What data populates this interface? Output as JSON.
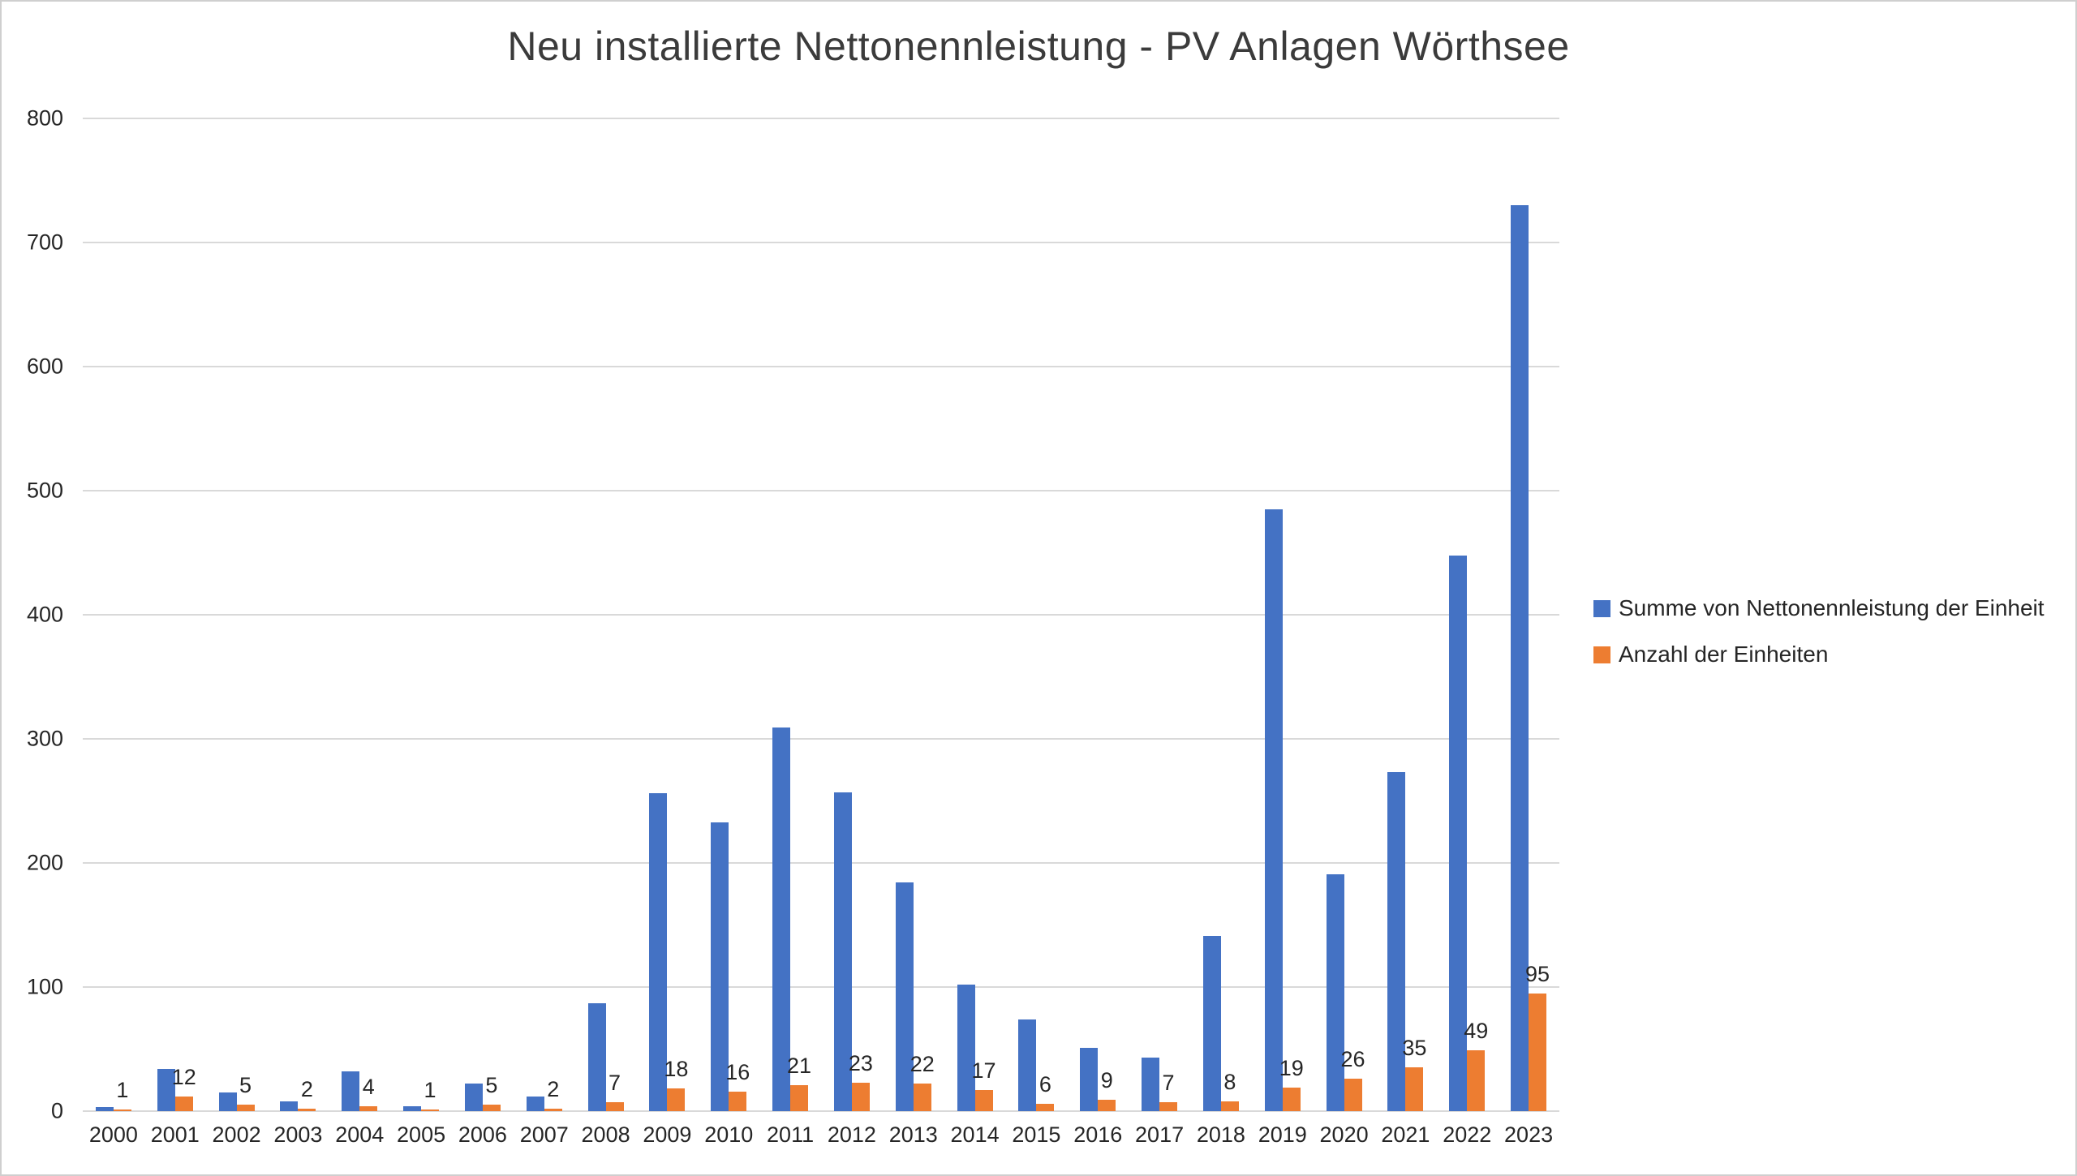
{
  "title": "Neu installierte Nettonennleistung - PV Anlagen Wörthsee",
  "chart_data": {
    "type": "bar",
    "title": "Neu installierte Nettonennleistung - PV Anlagen Wörthsee",
    "categories": [
      "2000",
      "2001",
      "2002",
      "2003",
      "2004",
      "2005",
      "2006",
      "2007",
      "2008",
      "2009",
      "2010",
      "2011",
      "2012",
      "2013",
      "2014",
      "2015",
      "2016",
      "2017",
      "2018",
      "2019",
      "2020",
      "2021",
      "2022",
      "2023"
    ],
    "series": [
      {
        "name": "Summe von Nettonennleistung der Einheit",
        "color": "#4472c4",
        "values": [
          3,
          34,
          15,
          8,
          32,
          4,
          22,
          12,
          87,
          256,
          233,
          309,
          257,
          184,
          102,
          74,
          51,
          43,
          141,
          485,
          191,
          273,
          448,
          730
        ],
        "data_labels": false
      },
      {
        "name": "Anzahl der Einheiten",
        "color": "#ed7d31",
        "values": [
          1,
          12,
          5,
          2,
          4,
          1,
          5,
          2,
          7,
          18,
          16,
          21,
          23,
          22,
          17,
          6,
          9,
          7,
          8,
          19,
          26,
          35,
          49,
          95
        ],
        "data_labels": true
      }
    ],
    "ylim": [
      0,
      800
    ],
    "ytick_step": 100,
    "yticks": [
      "0",
      "100",
      "200",
      "300",
      "400",
      "500",
      "600",
      "700",
      "800"
    ],
    "grid": true,
    "legend_position": "right",
    "background": "#ffffff",
    "gridline_color": "#d9d9d9"
  }
}
